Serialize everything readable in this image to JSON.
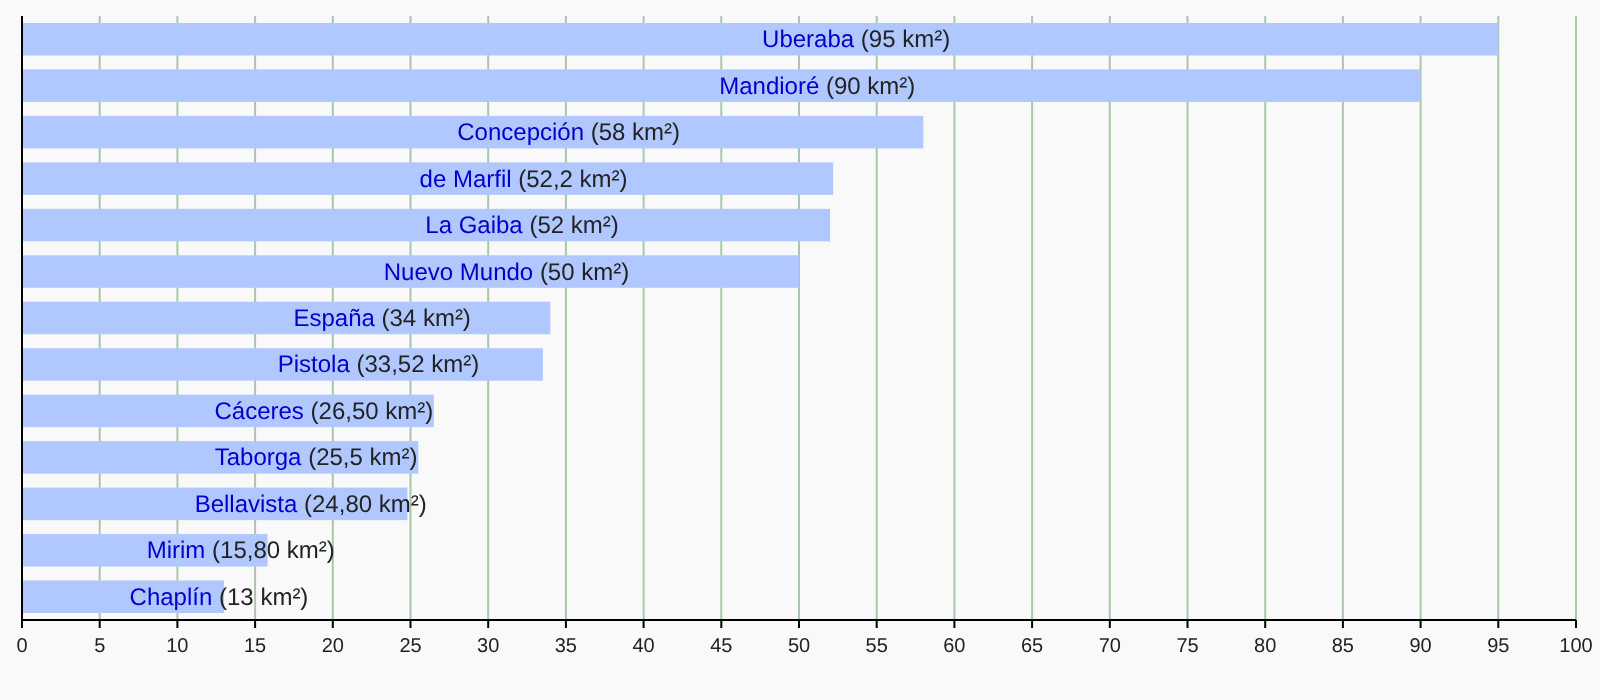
{
  "chart_data": {
    "type": "bar",
    "orientation": "horizontal",
    "categories": [
      "Uberaba",
      "Mandioré",
      "Concepción",
      "de Marfil",
      "La Gaiba",
      "Nuevo Mundo",
      "España",
      "Pistola",
      "Cáceres",
      "Taborga",
      "Bellavista",
      "Mirim",
      "Chaplín"
    ],
    "values": [
      95,
      90,
      58,
      52.2,
      52,
      50,
      34,
      33.52,
      26.5,
      25.5,
      24.8,
      15.8,
      13
    ],
    "value_labels": [
      "(95 km²)",
      "(90 km²)",
      "(58 km²)",
      "(52,2 km²)",
      "(52 km²)",
      "(50 km²)",
      "(34 km²)",
      "(33,52 km²)",
      "(26,50 km²)",
      "(25,5 km²)",
      "(24,80 km²)",
      "(15,80 km²)",
      "(13 km²)"
    ],
    "color": "#b0c8ff",
    "xlim": [
      0,
      100
    ],
    "xticks": [
      0,
      5,
      10,
      15,
      20,
      25,
      30,
      35,
      40,
      45,
      50,
      55,
      60,
      65,
      70,
      75,
      80,
      85,
      90,
      95,
      100
    ],
    "grid": "x"
  }
}
